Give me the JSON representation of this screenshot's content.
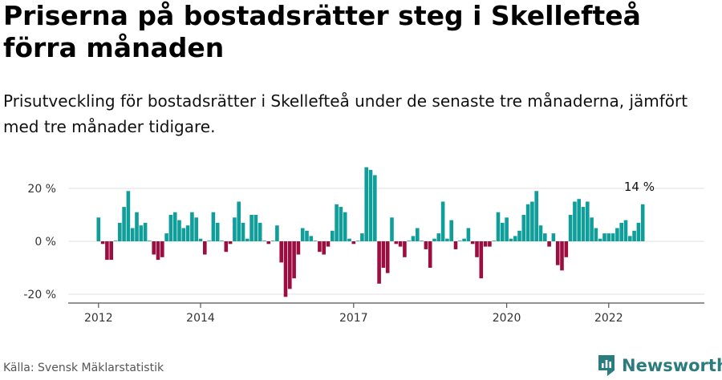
{
  "title": "Priserna på bostadsrätter steg i Skellefteå förra månaden",
  "subtitle": "Prisutveckling för bostadsrätter i Skellefteå under de senaste tre månaderna, jämfört med tre månader tidigare.",
  "source": "Källa: Svensk Mäklarstatistik",
  "brand": "Newsworthy",
  "colors": {
    "positive": "#0f9e9a",
    "negative": "#9c0e3f",
    "brand": "#2b7d7d"
  },
  "chart_data": {
    "type": "bar",
    "title": "Priserna på bostadsrätter steg i Skellefteå förra månaden",
    "xlabel": "",
    "ylabel": "",
    "x_start": "2012-01",
    "interval": "month",
    "ylim": [
      -22,
      30
    ],
    "yticks": [
      20,
      0,
      -20
    ],
    "ytick_labels": [
      "20 %",
      "0 %",
      "-20 %"
    ],
    "xticks": [
      2012,
      2014,
      2017,
      2020,
      2022
    ],
    "xtick_labels": [
      "2012",
      "2014",
      "2017",
      "2020",
      "2022"
    ],
    "annotation": "14 %",
    "values": [
      9,
      -1,
      -7,
      -7,
      0,
      7,
      13,
      19,
      5,
      11,
      6,
      7,
      0,
      -5,
      -7,
      -6,
      3,
      10,
      11,
      8,
      5,
      6,
      11,
      9,
      1,
      -5,
      0,
      11,
      7,
      0,
      -4,
      -1,
      9,
      15,
      7,
      1,
      10,
      10,
      7,
      0,
      -1,
      0,
      6,
      -8,
      -21,
      -18,
      -14,
      -5,
      5,
      4,
      2,
      0,
      -4,
      -5,
      -2,
      4,
      14,
      13,
      11,
      1,
      -1,
      0,
      3,
      28,
      27,
      25,
      -16,
      -10,
      -12,
      9,
      -1,
      -2,
      -6,
      0,
      2,
      5,
      0,
      -3,
      -10,
      1,
      3,
      15,
      1,
      8,
      -3,
      0,
      1,
      5,
      -1,
      -6,
      -14,
      -2,
      -2,
      0,
      11,
      7,
      9,
      1,
      2,
      4,
      10,
      14,
      15,
      19,
      6,
      3,
      -2,
      3,
      -9,
      -11,
      -6,
      10,
      15,
      16,
      13,
      15,
      9,
      5,
      1,
      3,
      3,
      3,
      5,
      7,
      8,
      2,
      4,
      7,
      14
    ]
  }
}
